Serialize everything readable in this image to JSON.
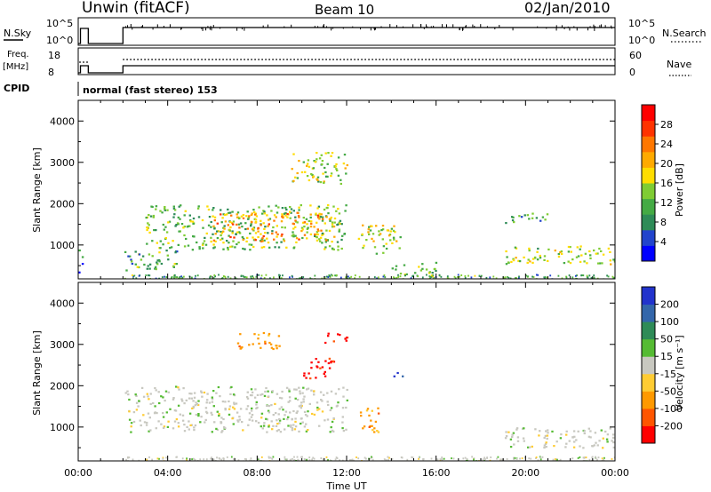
{
  "header": {
    "station": "Unwin (fitACF)",
    "beam": "Beam 10",
    "date": "02/Jan/2010"
  },
  "status_panels": {
    "nsky_label": "N.Sky",
    "nsky_ticks": [
      "10^5",
      "10^0"
    ],
    "nsearch_label": "N.Search",
    "nsearch_ticks": [
      "10^5",
      "10^0"
    ],
    "freq_label_line1": "Freq.",
    "freq_label_line2": "[MHz]",
    "freq_ticks": [
      "18",
      "8"
    ],
    "nave_label": "Nave",
    "nave_ticks": [
      "60",
      "0"
    ],
    "cpid_label": "CPID",
    "cpid_text": "normal (fast stereo) 153"
  },
  "colors": {
    "power_scale": [
      "#0000ff",
      "#2244cc",
      "#2e8b57",
      "#44aa44",
      "#7fcc33",
      "#ffdd00",
      "#ffaa00",
      "#ff7700",
      "#ff3300",
      "#ff0000"
    ],
    "velocity_scale": [
      "#2233cc",
      "#3366aa",
      "#2e8b57",
      "#55bb33",
      "#c8c8c0",
      "#ffcc33",
      "#ff9900",
      "#ff5500",
      "#ff0000"
    ]
  },
  "chart_data": [
    {
      "type": "heatmap",
      "name": "power",
      "xlabel": "",
      "ylabel": "Slant Range [km]",
      "xlim": [
        "00:00",
        "24:00"
      ],
      "ylim": [
        180,
        4500
      ],
      "yticks": [
        1000,
        2000,
        3000,
        4000
      ],
      "colorbar_label": "Power [dB]",
      "colorbar_ticks": [
        4,
        8,
        12,
        16,
        20,
        24,
        28
      ],
      "colorbar_range": [
        0,
        30
      ],
      "regions": [
        {
          "t0": 0.0,
          "t1": 0.2,
          "r0": 350,
          "r1": 1000,
          "value": 6
        },
        {
          "t0": 2.0,
          "t1": 4.5,
          "r0": 400,
          "r1": 900,
          "value": 10
        },
        {
          "t0": 3.0,
          "t1": 12.0,
          "r0": 900,
          "r1": 2000,
          "value": 12
        },
        {
          "t0": 6.0,
          "t1": 11.5,
          "r0": 1100,
          "r1": 1800,
          "value": 20
        },
        {
          "t0": 9.5,
          "t1": 12.0,
          "r0": 2500,
          "r1": 3300,
          "value": 14
        },
        {
          "t0": 12.5,
          "t1": 14.5,
          "r0": 800,
          "r1": 1500,
          "value": 15
        },
        {
          "t0": 14.0,
          "t1": 16.0,
          "r0": 300,
          "r1": 600,
          "value": 12
        },
        {
          "t0": 19.0,
          "t1": 21.0,
          "r0": 1550,
          "r1": 1800,
          "value": 10
        },
        {
          "t0": 19.0,
          "t1": 24.0,
          "r0": 550,
          "r1": 1000,
          "value": 14
        }
      ]
    },
    {
      "type": "heatmap",
      "name": "velocity",
      "xlabel": "Time UT",
      "ylabel": "Slant Range [km]",
      "xticks": [
        "00:00",
        "04:00",
        "08:00",
        "12:00",
        "16:00",
        "20:00",
        "00:00"
      ],
      "ylim": [
        180,
        4500
      ],
      "yticks": [
        1000,
        2000,
        3000,
        4000
      ],
      "colorbar_label": "Velocity [m s⁻¹]",
      "colorbar_ticks": [
        "200",
        "100",
        "50",
        "15",
        "-15",
        "-50",
        "-100",
        "-200"
      ],
      "regions": [
        {
          "t0": 2.0,
          "t1": 12.0,
          "r0": 900,
          "r1": 2000,
          "value": 0
        },
        {
          "t0": 7.0,
          "t1": 9.0,
          "r0": 2900,
          "r1": 3300,
          "value": -60
        },
        {
          "t0": 10.0,
          "t1": 11.5,
          "r0": 2200,
          "r1": 2700,
          "value": -200
        },
        {
          "t0": 11.0,
          "t1": 12.0,
          "r0": 3000,
          "r1": 3300,
          "value": -200
        },
        {
          "t0": 12.5,
          "t1": 13.5,
          "r0": 900,
          "r1": 1500,
          "value": -60
        },
        {
          "t0": 14.0,
          "t1": 14.5,
          "r0": 2200,
          "r1": 2400,
          "value": 150
        },
        {
          "t0": 19.0,
          "t1": 24.0,
          "r0": 500,
          "r1": 1000,
          "value": 0
        }
      ]
    }
  ]
}
